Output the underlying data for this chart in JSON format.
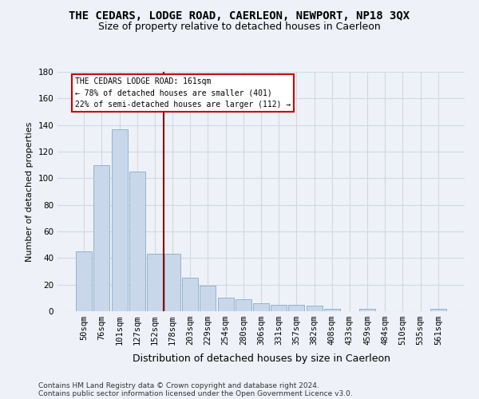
{
  "title": "THE CEDARS, LODGE ROAD, CAERLEON, NEWPORT, NP18 3QX",
  "subtitle": "Size of property relative to detached houses in Caerleon",
  "xlabel": "Distribution of detached houses by size in Caerleon",
  "ylabel": "Number of detached properties",
  "categories": [
    "50sqm",
    "76sqm",
    "101sqm",
    "127sqm",
    "152sqm",
    "178sqm",
    "203sqm",
    "229sqm",
    "254sqm",
    "280sqm",
    "306sqm",
    "331sqm",
    "357sqm",
    "382sqm",
    "408sqm",
    "433sqm",
    "459sqm",
    "484sqm",
    "510sqm",
    "535sqm",
    "561sqm"
  ],
  "values": [
    45,
    110,
    137,
    105,
    43,
    43,
    25,
    19,
    10,
    9,
    6,
    5,
    5,
    4,
    2,
    0,
    2,
    0,
    0,
    0,
    2
  ],
  "bar_color": "#c8d8ea",
  "bar_edge_color": "#88aacc",
  "grid_color": "#d0d8e0",
  "background_color": "#eef2f8",
  "vline_color": "#8b0000",
  "annotation_text": "THE CEDARS LODGE ROAD: 161sqm\n← 78% of detached houses are smaller (401)\n22% of semi-detached houses are larger (112) →",
  "annotation_box_color": "#ffffff",
  "annotation_box_edge": "#cc0000",
  "ylim": [
    0,
    180
  ],
  "yticks": [
    0,
    20,
    40,
    60,
    80,
    100,
    120,
    140,
    160,
    180
  ],
  "footer_line1": "Contains HM Land Registry data © Crown copyright and database right 2024.",
  "footer_line2": "Contains public sector information licensed under the Open Government Licence v3.0.",
  "title_fontsize": 10,
  "subtitle_fontsize": 9,
  "xlabel_fontsize": 9,
  "ylabel_fontsize": 8,
  "tick_fontsize": 7.5,
  "footer_fontsize": 6.5,
  "annot_fontsize": 7
}
